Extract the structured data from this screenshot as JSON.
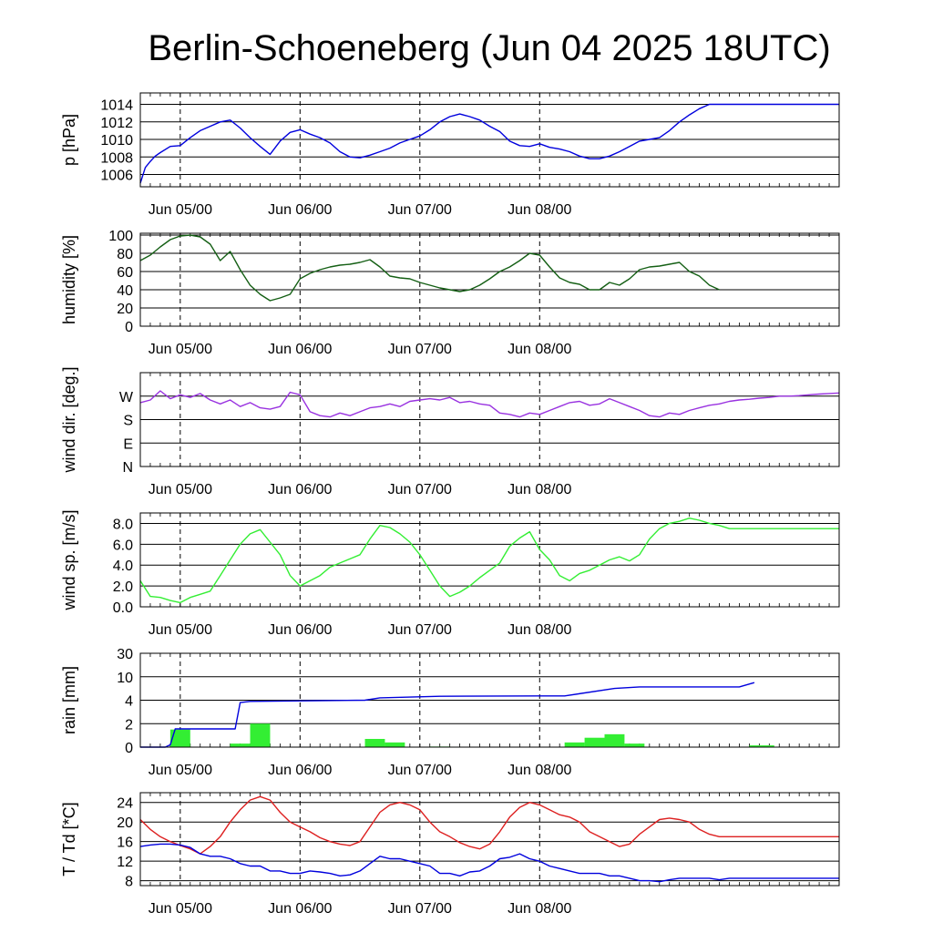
{
  "title": "Berlin-Schoeneberg (Jun 04 2025 18UTC)",
  "chart_data": [
    {
      "type": "line",
      "ylabel": "p [hPa]",
      "ylim": [
        1004.6,
        1015.3
      ],
      "yticks": [
        1006,
        1008,
        1010,
        1012,
        1014
      ],
      "grid": true,
      "x_label_ticks": [
        "Jun 05/00",
        "Jun 06/00",
        "Jun 07/00",
        "Jun 08/00"
      ],
      "series": [
        {
          "color": "#0000dd",
          "x": [
            0,
            1,
            2,
            3,
            4,
            6,
            8,
            10,
            12,
            14,
            16,
            18,
            20,
            22,
            24,
            26,
            28,
            30,
            32,
            34,
            36,
            38,
            40,
            42,
            44,
            46,
            48,
            50,
            52,
            54,
            56,
            58,
            60,
            62,
            64,
            66,
            68,
            70,
            72,
            74,
            76,
            78,
            80,
            82,
            84,
            86,
            88,
            90,
            92,
            94,
            96,
            98,
            100,
            102,
            104,
            106,
            108,
            110,
            112,
            114,
            116,
            118,
            120,
            122,
            124,
            126,
            128,
            130,
            132,
            134,
            136,
            138,
            140
          ],
          "values": [
            1005.0,
            1006.8,
            1007.5,
            1008.1,
            1008.5,
            1009.2,
            1009.3,
            1010.2,
            1011.0,
            1011.5,
            1012.0,
            1012.2,
            1011.3,
            1010.2,
            1009.2,
            1008.3,
            1009.8,
            1010.8,
            1011.1,
            1010.6,
            1010.2,
            1009.6,
            1008.6,
            1008.0,
            1007.9,
            1008.2,
            1008.6,
            1009.0,
            1009.6,
            1010.0,
            1010.4,
            1011.1,
            1012.0,
            1012.6,
            1012.9,
            1012.6,
            1012.2,
            1011.5,
            1010.9,
            1009.8,
            1009.3,
            1009.2,
            1009.5,
            1009.1,
            1008.9,
            1008.6,
            1008.1,
            1007.8,
            1007.8,
            1008.1,
            1008.6,
            1009.2,
            1009.8,
            1010.0,
            1010.2,
            1011.0,
            1012.0,
            1012.8,
            1013.5,
            1014.0,
            1014.0,
            1014.0,
            1014.0,
            1014.0,
            1014.0,
            1014.0,
            1014.0,
            1014.0,
            1014.0,
            1014.0,
            1014.0,
            1014.0,
            1014.0
          ]
        }
      ]
    },
    {
      "type": "line",
      "ylabel": "humidity [%]",
      "ylim": [
        0,
        102
      ],
      "yticks": [
        0,
        20,
        40,
        60,
        80,
        100
      ],
      "grid": true,
      "x_label_ticks": [
        "Jun 05/00",
        "Jun 06/00",
        "Jun 07/00",
        "Jun 08/00"
      ],
      "series": [
        {
          "color": "#145f14",
          "x": [
            0,
            2,
            4,
            6,
            8,
            10,
            12,
            14,
            16,
            18,
            20,
            22,
            24,
            26,
            28,
            30,
            32,
            34,
            36,
            38,
            40,
            42,
            44,
            46,
            48,
            50,
            52,
            54,
            56,
            58,
            60,
            62,
            64,
            66,
            68,
            70,
            72,
            74,
            76,
            78,
            80,
            82,
            84,
            86,
            88,
            90,
            92,
            94,
            96,
            98,
            100,
            102,
            104,
            106,
            108,
            110,
            112,
            114,
            116
          ],
          "values": [
            72,
            78,
            87,
            95,
            99,
            100,
            98,
            90,
            72,
            82,
            62,
            45,
            35,
            28,
            31,
            35,
            52,
            58,
            62,
            65,
            67,
            68,
            70,
            73,
            65,
            55,
            53,
            52,
            48,
            45,
            42,
            40,
            38,
            40,
            45,
            52,
            60,
            65,
            72,
            80,
            78,
            65,
            53,
            48,
            46,
            40,
            40,
            48,
            45,
            52,
            62,
            65,
            66,
            68,
            70,
            60,
            55,
            45,
            40
          ]
        }
      ]
    },
    {
      "type": "line",
      "ylabel": "wind dir. [deg.]",
      "ylim": [
        0,
        360
      ],
      "yticks": [
        0,
        90,
        180,
        270
      ],
      "ytick_labels": [
        "N",
        "E",
        "S",
        "W"
      ],
      "grid": true,
      "x_label_ticks": [
        "Jun 05/00",
        "Jun 06/00",
        "Jun 07/00",
        "Jun 08/00"
      ],
      "series": [
        {
          "color": "#9932e0",
          "x": [
            0,
            2,
            4,
            6,
            8,
            10,
            12,
            14,
            16,
            18,
            20,
            22,
            24,
            26,
            28,
            30,
            32,
            34,
            36,
            38,
            40,
            42,
            44,
            46,
            48,
            50,
            52,
            54,
            56,
            58,
            60,
            62,
            64,
            66,
            68,
            70,
            72,
            74,
            76,
            78,
            80,
            82,
            84,
            86,
            88,
            90,
            92,
            94,
            96,
            98,
            100,
            102,
            104,
            106,
            108,
            110,
            112,
            114,
            116,
            118,
            120,
            122,
            124,
            126,
            128,
            130,
            132,
            134,
            136,
            138,
            140
          ],
          "values": [
            245,
            255,
            290,
            260,
            275,
            265,
            280,
            255,
            240,
            255,
            230,
            245,
            225,
            220,
            230,
            285,
            275,
            210,
            195,
            190,
            205,
            195,
            210,
            225,
            230,
            240,
            230,
            250,
            255,
            260,
            255,
            265,
            245,
            250,
            240,
            235,
            205,
            200,
            190,
            205,
            200,
            215,
            230,
            245,
            250,
            235,
            240,
            260,
            245,
            230,
            215,
            195,
            190,
            205,
            200,
            215,
            225,
            235,
            240,
            250,
            255,
            258,
            262,
            265,
            270,
            270,
            272,
            275,
            278,
            280,
            282
          ]
        }
      ]
    },
    {
      "type": "line",
      "ylabel": "wind sp. [m/s]",
      "ylim": [
        0,
        9.0
      ],
      "yticks": [
        0.0,
        2.0,
        4.0,
        6.0,
        8.0
      ],
      "ytick_labels": [
        "0.0",
        "2.0",
        "4.0",
        "6.0",
        "8.0"
      ],
      "grid": true,
      "x_label_ticks": [
        "Jun 05/00",
        "Jun 06/00",
        "Jun 07/00",
        "Jun 08/00"
      ],
      "series": [
        {
          "color": "#33ee33",
          "x": [
            0,
            2,
            4,
            6,
            8,
            10,
            12,
            14,
            16,
            18,
            20,
            22,
            24,
            26,
            28,
            30,
            32,
            34,
            36,
            38,
            40,
            42,
            44,
            46,
            48,
            50,
            52,
            54,
            56,
            58,
            60,
            62,
            64,
            66,
            68,
            70,
            72,
            74,
            76,
            78,
            80,
            82,
            84,
            86,
            88,
            90,
            92,
            94,
            96,
            98,
            100,
            102,
            104,
            106,
            108,
            110,
            112,
            114,
            116,
            118,
            120,
            122,
            124,
            126,
            128,
            130,
            132,
            134,
            136,
            138,
            140
          ],
          "values": [
            2.5,
            1.0,
            0.9,
            0.6,
            0.4,
            0.9,
            1.2,
            1.5,
            3.0,
            4.5,
            6.0,
            7.0,
            7.4,
            6.2,
            5.0,
            3.0,
            2.0,
            2.5,
            3.0,
            3.8,
            4.2,
            4.6,
            5.0,
            6.5,
            7.8,
            7.6,
            7.0,
            6.2,
            5.0,
            3.5,
            2.0,
            1.0,
            1.4,
            2.0,
            2.8,
            3.5,
            4.2,
            5.8,
            6.6,
            7.2,
            5.5,
            4.5,
            3.0,
            2.5,
            3.2,
            3.5,
            4.0,
            4.5,
            4.8,
            4.4,
            5.0,
            6.5,
            7.5,
            8.0,
            8.2,
            8.5,
            8.3,
            8.0,
            7.8,
            7.5,
            7.5,
            7.5,
            7.5,
            7.5,
            7.5,
            7.5,
            7.5,
            7.5,
            7.5,
            7.5,
            7.5
          ]
        }
      ]
    },
    {
      "type": "bar",
      "ylabel": "rain [mm]",
      "scale": "piecewise",
      "yticks": [
        0,
        2,
        4,
        10,
        30
      ],
      "grid": true,
      "x_label_ticks": [
        "Jun 05/00",
        "Jun 06/00",
        "Jun 07/00",
        "Jun 08/00"
      ],
      "bars": {
        "color": "#33ee33",
        "x_start": [
          6,
          18,
          22,
          45,
          49,
          58,
          85,
          89,
          93,
          97,
          122
        ],
        "x_end": [
          10,
          22,
          26,
          49,
          53,
          62,
          89,
          93,
          97,
          101,
          127
        ],
        "values": [
          1.5,
          0.3,
          2.0,
          0.7,
          0.4,
          0.05,
          0.4,
          0.8,
          1.1,
          0.3,
          0.15
        ]
      },
      "series": [
        {
          "name": "",
          "color": "#0000dd",
          "x": [
            0,
            5,
            6,
            7,
            19,
            20,
            22,
            45,
            48,
            60,
            80,
            85,
            95,
            100,
            120,
            123
          ],
          "values": [
            0,
            0,
            0.2,
            1.55,
            1.55,
            3.8,
            3.9,
            4.0,
            4.6,
            5.0,
            5.1,
            5.1,
            7.0,
            7.4,
            7.4,
            8.5
          ]
        }
      ]
    },
    {
      "type": "line",
      "ylabel": "T / Td [*C]",
      "ylim": [
        7,
        26
      ],
      "yticks": [
        8,
        12,
        16,
        20,
        24
      ],
      "grid": true,
      "x_label_ticks": [
        "Jun 05/00",
        "Jun 06/00",
        "Jun 07/00",
        "Jun 08/00"
      ],
      "series": [
        {
          "color": "#dd2020",
          "x": [
            0,
            2,
            4,
            6,
            8,
            10,
            12,
            14,
            16,
            18,
            20,
            22,
            24,
            26,
            28,
            30,
            32,
            34,
            36,
            38,
            40,
            42,
            44,
            46,
            48,
            50,
            52,
            54,
            56,
            58,
            60,
            62,
            64,
            66,
            68,
            70,
            72,
            74,
            76,
            78,
            80,
            82,
            84,
            86,
            88,
            90,
            92,
            94,
            96,
            98,
            100,
            102,
            104,
            106,
            108,
            110,
            112,
            114,
            116,
            118,
            120,
            122,
            124,
            126,
            128,
            130,
            132,
            134,
            136,
            138,
            140
          ],
          "values": [
            20.5,
            18.5,
            17.0,
            16.0,
            15.2,
            14.5,
            13.5,
            15.0,
            17.0,
            20.0,
            22.5,
            24.5,
            25.2,
            24.5,
            22.0,
            20.0,
            19.0,
            18.0,
            16.8,
            16.0,
            15.5,
            15.2,
            16.0,
            19.0,
            22.0,
            23.5,
            24.0,
            23.5,
            22.5,
            20.0,
            18.0,
            17.0,
            15.8,
            15.0,
            14.5,
            15.5,
            18.0,
            21.0,
            23.0,
            24.0,
            23.5,
            22.5,
            21.5,
            21.0,
            20.0,
            18.0,
            17.0,
            16.0,
            15.0,
            15.5,
            17.5,
            19.0,
            20.5,
            20.8,
            20.5,
            20.0,
            18.5,
            17.5,
            17.0,
            17.0,
            17.0,
            17.0,
            17.0,
            17.0,
            17.0,
            17.0,
            17.0,
            17.0,
            17.0,
            17.0,
            17.0
          ]
        },
        {
          "color": "#0000dd",
          "x": [
            0,
            2,
            4,
            6,
            8,
            10,
            12,
            14,
            16,
            18,
            20,
            22,
            24,
            26,
            28,
            30,
            32,
            34,
            36,
            38,
            40,
            42,
            44,
            46,
            48,
            50,
            52,
            54,
            56,
            58,
            60,
            62,
            64,
            66,
            68,
            70,
            72,
            74,
            76,
            78,
            80,
            82,
            84,
            86,
            88,
            90,
            92,
            94,
            96,
            98,
            100,
            102,
            104,
            106,
            108,
            110,
            112,
            114,
            116,
            118,
            120,
            122,
            124,
            126,
            128,
            130,
            132,
            134,
            136,
            138,
            140
          ],
          "values": [
            15.0,
            15.3,
            15.5,
            15.5,
            15.3,
            14.8,
            13.5,
            13.0,
            13.0,
            12.5,
            11.5,
            11.0,
            11.0,
            10.0,
            10.0,
            9.5,
            9.5,
            10.0,
            9.8,
            9.5,
            9.0,
            9.2,
            10.0,
            11.5,
            13.0,
            12.5,
            12.5,
            12.0,
            11.5,
            11.0,
            9.5,
            9.5,
            9.0,
            9.8,
            10.0,
            11.0,
            12.5,
            12.8,
            13.5,
            12.5,
            12.0,
            11.0,
            10.5,
            10.0,
            9.5,
            9.5,
            9.5,
            9.0,
            9.0,
            8.5,
            8.0,
            8.0,
            7.8,
            8.2,
            8.5,
            8.5,
            8.5,
            8.5,
            8.2,
            8.5,
            8.5,
            8.5,
            8.5,
            8.5,
            8.5,
            8.5,
            8.5,
            8.5,
            8.5,
            8.5,
            8.5
          ]
        }
      ]
    }
  ]
}
